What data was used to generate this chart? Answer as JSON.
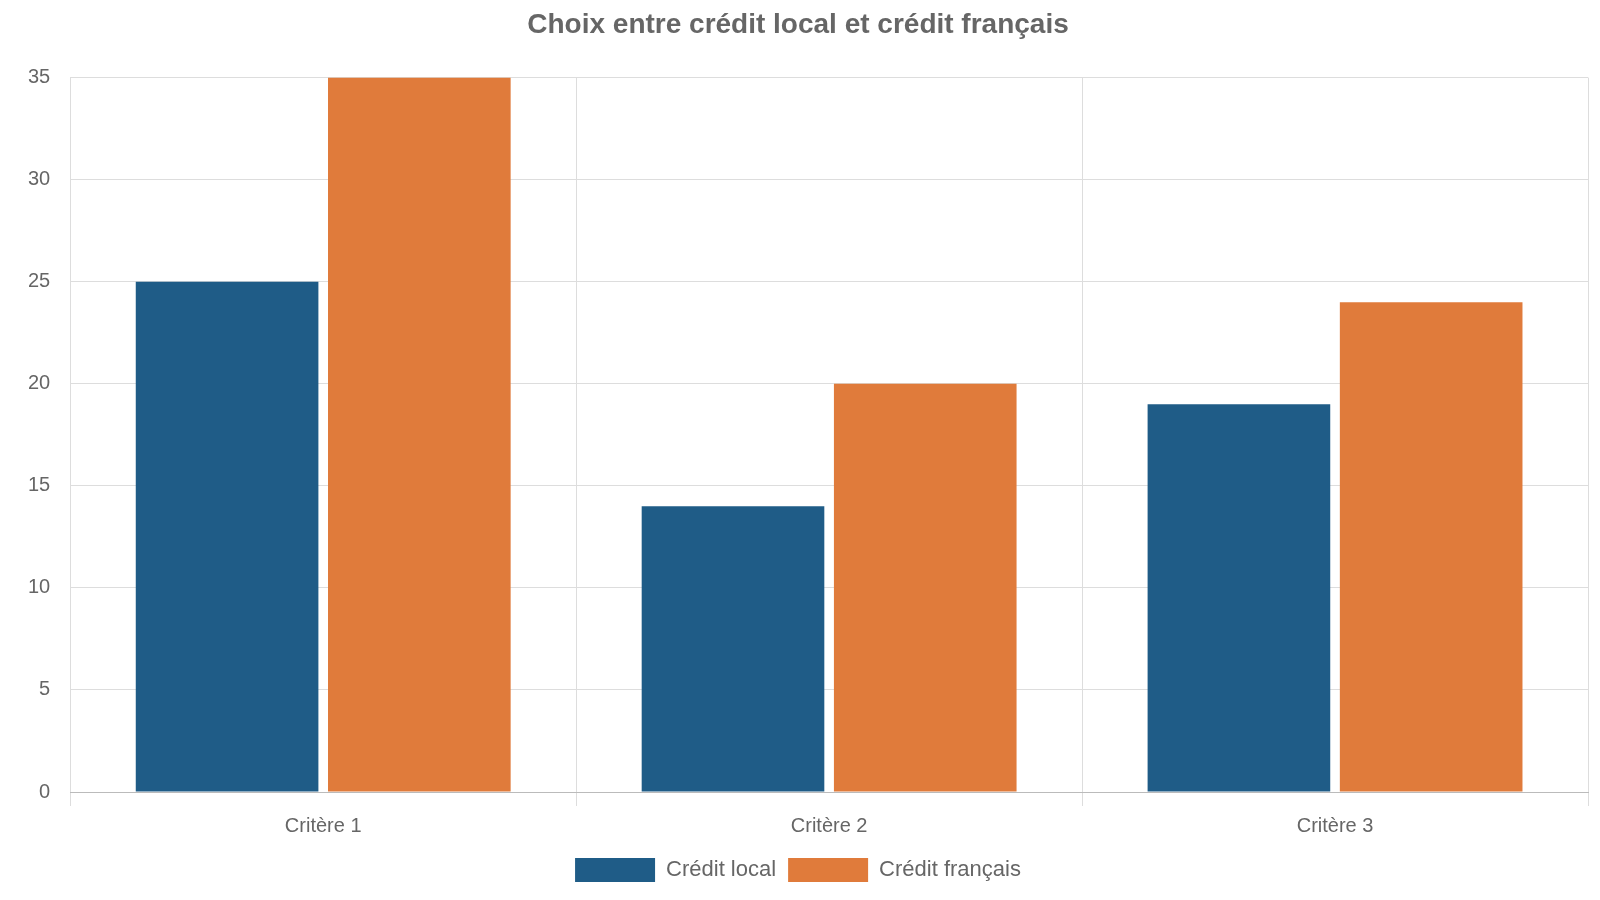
{
  "chart_data": {
    "type": "bar",
    "title": "Choix entre crédit local et crédit français",
    "categories": [
      "Critère 1",
      "Critère 2",
      "Critère 3"
    ],
    "series": [
      {
        "name": "Crédit local",
        "color": "#1f5c87",
        "values": [
          25,
          14,
          19
        ]
      },
      {
        "name": "Crédit français",
        "color": "#e07b3b",
        "values": [
          35,
          20,
          24
        ]
      }
    ],
    "ylim": [
      0,
      35
    ],
    "yticks": [
      0,
      5,
      10,
      15,
      20,
      25,
      30,
      35
    ],
    "grid": true,
    "legend": "bottom"
  }
}
